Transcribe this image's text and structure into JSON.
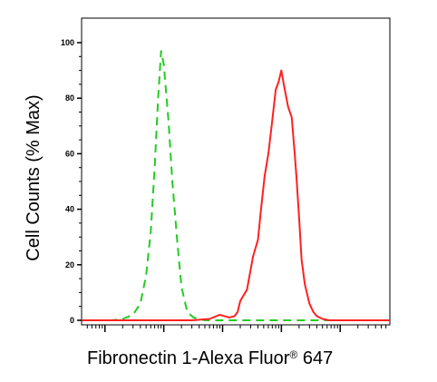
{
  "chart_data": {
    "type": "line",
    "title": "",
    "xlabel": "Fibronectin 1-Alexa Fluor",
    "xlabel_superscript": "®",
    "xlabel_suffix": " 647",
    "ylabel": "Cell Counts (% Max)",
    "x_scale": "log",
    "x_decades": [
      1,
      10,
      100,
      1000,
      10000,
      100000
    ],
    "xlim": [
      0.4,
      70000
    ],
    "ylim": [
      0,
      100
    ],
    "y_ticks": [
      0,
      20,
      40,
      60,
      80,
      100
    ],
    "y_tick_labels": [
      "0",
      "20",
      "40",
      "60",
      "80",
      "100"
    ],
    "grid": false,
    "legend": "none",
    "series": [
      {
        "color": "#22cc22",
        "dash": "dashed",
        "x": [
          0.4,
          1.3,
          2.0,
          3.0,
          4.0,
          5.0,
          6.0,
          7.0,
          8.0,
          9.0,
          10.0,
          12.0,
          14.0,
          17.0,
          20.0,
          25.0,
          32.0,
          40.0,
          50.0,
          60.0,
          100.0,
          1000.0,
          10000.0,
          70000.0
        ],
        "y": [
          0,
          0,
          0.5,
          2,
          6,
          16,
          32,
          55,
          80,
          97,
          92,
          72,
          50,
          28,
          12,
          3,
          1,
          0.5,
          0,
          0,
          0,
          0,
          0,
          0
        ]
      },
      {
        "color": "#ff2020",
        "dash": "solid",
        "x": [
          0.4,
          30.0,
          60.0,
          90.0,
          130.0,
          160.0,
          180.0,
          200.0,
          260.0,
          330.0,
          400.0,
          450.0,
          520.0,
          600.0,
          700.0,
          800.0,
          900.0,
          1000.0,
          1100.0,
          1300.0,
          1500.0,
          1700.0,
          1800.0,
          2000.0,
          2200.0,
          2500.0,
          3000.0,
          3500.0,
          4000.0,
          5000.0,
          6500.0,
          8000.0,
          12000.0,
          70000.0
        ],
        "y": [
          0,
          0,
          0.5,
          2,
          1,
          1.5,
          3,
          7,
          11,
          23,
          29,
          40,
          52,
          60,
          72,
          83,
          86,
          90,
          85,
          77,
          73,
          59,
          52,
          37,
          22,
          13,
          6,
          3,
          1.5,
          0.5,
          0,
          0,
          0,
          0
        ]
      }
    ]
  }
}
